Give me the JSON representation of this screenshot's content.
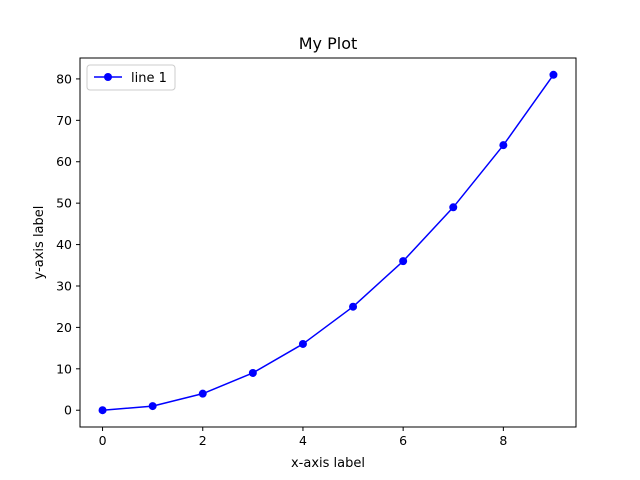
{
  "chart_data": {
    "type": "line",
    "title": "My Plot",
    "xlabel": "x-axis label",
    "ylabel": "y-axis label",
    "x": [
      0,
      1,
      2,
      3,
      4,
      5,
      6,
      7,
      8,
      9
    ],
    "series": [
      {
        "name": "line 1",
        "values": [
          0,
          1,
          4,
          9,
          16,
          25,
          36,
          49,
          64,
          81
        ],
        "color": "#0000ff",
        "marker": "circle"
      }
    ],
    "xlim": [
      -0.45,
      9.45
    ],
    "ylim": [
      -4.05,
      85.05
    ],
    "xticks": [
      0,
      2,
      4,
      6,
      8
    ],
    "xtick_labels": [
      "0",
      "2",
      "4",
      "6",
      "8"
    ],
    "yticks": [
      0,
      10,
      20,
      30,
      40,
      50,
      60,
      70,
      80
    ],
    "ytick_labels": [
      "0",
      "10",
      "20",
      "30",
      "40",
      "50",
      "60",
      "70",
      "80"
    ],
    "grid": false,
    "legend_position": "top-left"
  }
}
